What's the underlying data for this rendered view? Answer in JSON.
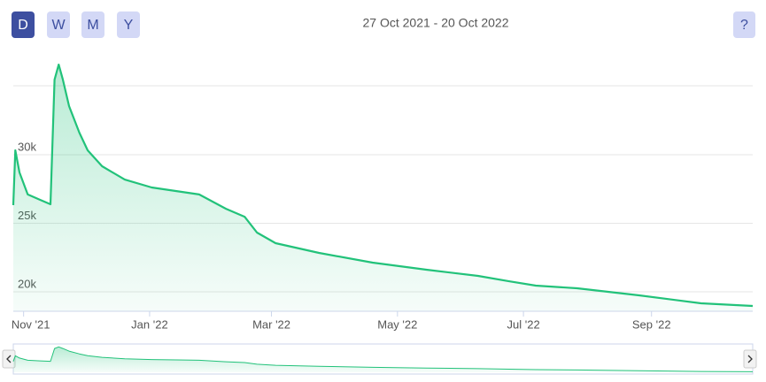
{
  "range_buttons": [
    "D",
    "W",
    "M",
    "Y"
  ],
  "date_range": "27 Oct 2021 - 20 Oct 2022",
  "help_button": "?",
  "chart_data": {
    "type": "area",
    "color": "#22c27a",
    "grid": true,
    "x": [
      "2021-10-27",
      "2021-10-28",
      "2021-10-30",
      "2021-11-03",
      "2021-11-09",
      "2021-11-14",
      "2021-11-16",
      "2021-11-18",
      "2021-11-20",
      "2021-11-23",
      "2021-11-28",
      "2021-12-02",
      "2021-12-09",
      "2021-12-20",
      "2022-01-02",
      "2022-01-14",
      "2022-01-25",
      "2022-02-07",
      "2022-02-16",
      "2022-02-22",
      "2022-03-03",
      "2022-03-24",
      "2022-04-19",
      "2022-05-15",
      "2022-06-09",
      "2022-06-24",
      "2022-07-07",
      "2022-07-27",
      "2022-08-26",
      "2022-09-25",
      "2022-10-20"
    ],
    "values": [
      26320,
      30320,
      28710,
      27100,
      26710,
      26390,
      35480,
      36580,
      35480,
      33550,
      31610,
      30320,
      29160,
      28190,
      27610,
      27350,
      27100,
      26060,
      25480,
      24320,
      23550,
      22840,
      22130,
      21610,
      21160,
      20770,
      20450,
      20260,
      19740,
      19160,
      18970
    ],
    "xlim": [
      "2021-10-27",
      "2022-10-20"
    ],
    "xticks": [
      {
        "value": "2021-11-01",
        "label": "Nov '21"
      },
      {
        "value": "2022-01-01",
        "label": "Jan '22"
      },
      {
        "value": "2022-03-01",
        "label": "Mar '22"
      },
      {
        "value": "2022-05-01",
        "label": "May '22"
      },
      {
        "value": "2022-07-01",
        "label": "Jul '22"
      },
      {
        "value": "2022-09-01",
        "label": "Sep '22"
      }
    ],
    "ylim": [
      18600,
      37400
    ],
    "yticks": [
      {
        "value": 20000,
        "label": "20k"
      },
      {
        "value": 25000,
        "label": "25k"
      },
      {
        "value": 30000,
        "label": "30k"
      }
    ]
  }
}
